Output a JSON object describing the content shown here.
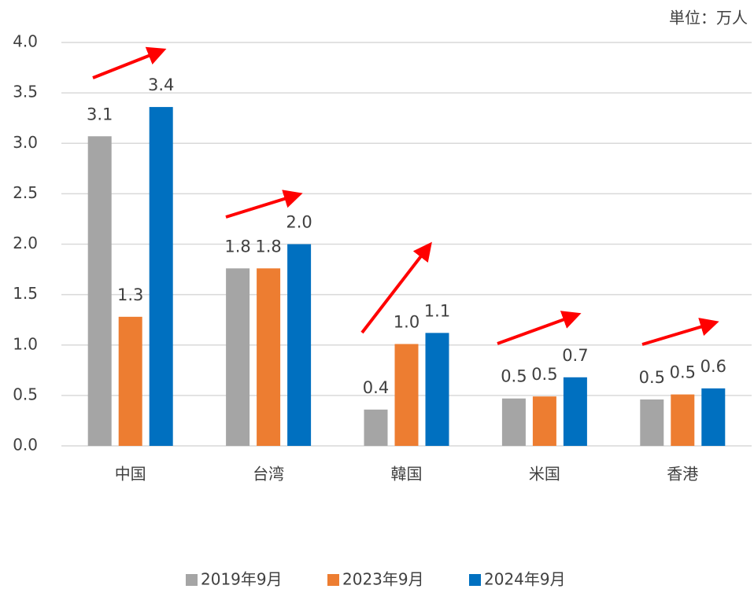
{
  "chart_data": {
    "type": "bar",
    "unit": "単位：万人",
    "categories": [
      "中国",
      "台湾",
      "韓国",
      "米国",
      "香港"
    ],
    "series": [
      {
        "name": "2019年9月",
        "color": "#a5a5a5",
        "values": [
          3.07,
          1.76,
          0.36,
          0.47,
          0.46
        ],
        "value_labels": [
          "3.1",
          "1.8",
          "0.4",
          "0.5",
          "0.5"
        ]
      },
      {
        "name": "2023年9月",
        "color": "#ed7d31",
        "values": [
          1.28,
          1.76,
          1.01,
          0.49,
          0.51
        ],
        "value_labels": [
          "1.3",
          "1.8",
          "1.0",
          "0.5",
          "0.5"
        ]
      },
      {
        "name": "2024年9月",
        "color": "#0070c0",
        "values": [
          3.36,
          2.0,
          1.12,
          0.68,
          0.57
        ],
        "value_labels": [
          "3.4",
          "2.0",
          "1.1",
          "0.7",
          "0.6"
        ]
      }
    ],
    "ylim": [
      0,
      4
    ],
    "yticks": [
      {
        "value": 0,
        "label": "0.0"
      },
      0.5,
      {
        "value": 1,
        "label": "1.0"
      },
      1.5,
      {
        "value": 2,
        "label": "2.0"
      },
      2.5,
      {
        "value": 3,
        "label": "3.0"
      },
      3.5,
      {
        "value": 4,
        "label": "4.0"
      }
    ],
    "grid": true
  }
}
